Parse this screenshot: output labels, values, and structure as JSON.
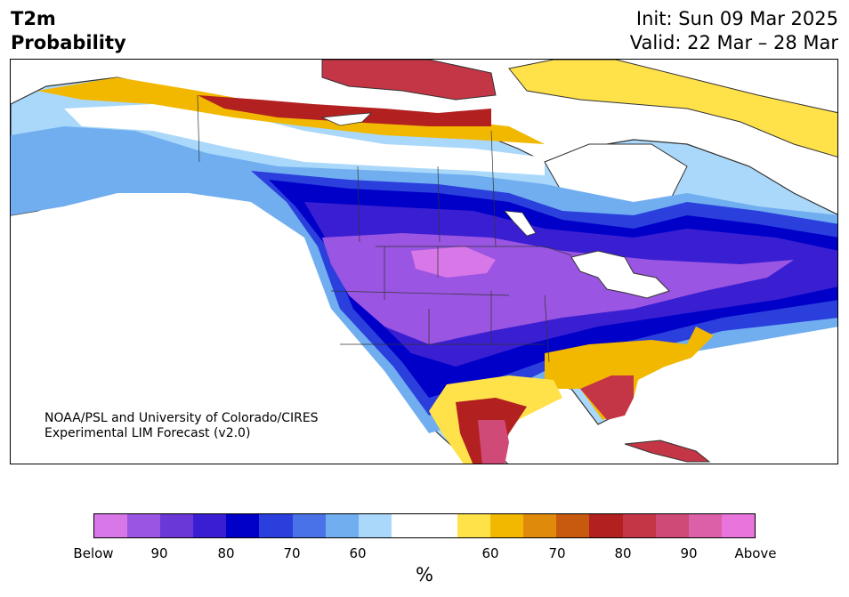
{
  "header": {
    "title_line1": "T2m",
    "title_line2": "Probability",
    "init": "Init: Sun 09 Mar 2025",
    "valid": "Valid: 22 Mar – 28 Mar"
  },
  "map": {
    "credit_line1": "NOAA/PSL and University of Colorado/CIRES",
    "credit_line2": "Experimental LIM Forecast (v2.0)"
  },
  "legend": {
    "unit": "%",
    "ticks": [
      "Below",
      "90",
      "80",
      "70",
      "60",
      "60",
      "70",
      "80",
      "90",
      "Above"
    ],
    "colors": [
      "#d877e8",
      "#9a55e2",
      "#6b38d8",
      "#3a1fd2",
      "#0000c8",
      "#2a3fdc",
      "#4a72e8",
      "#70aef0",
      "#aad8fa",
      "#ffffff",
      "#ffffff",
      "#ffe24a",
      "#f2b800",
      "#e08a0c",
      "#c85a10",
      "#b22020",
      "#c43545",
      "#d04a78",
      "#dc60a8",
      "#e874dc"
    ]
  }
}
